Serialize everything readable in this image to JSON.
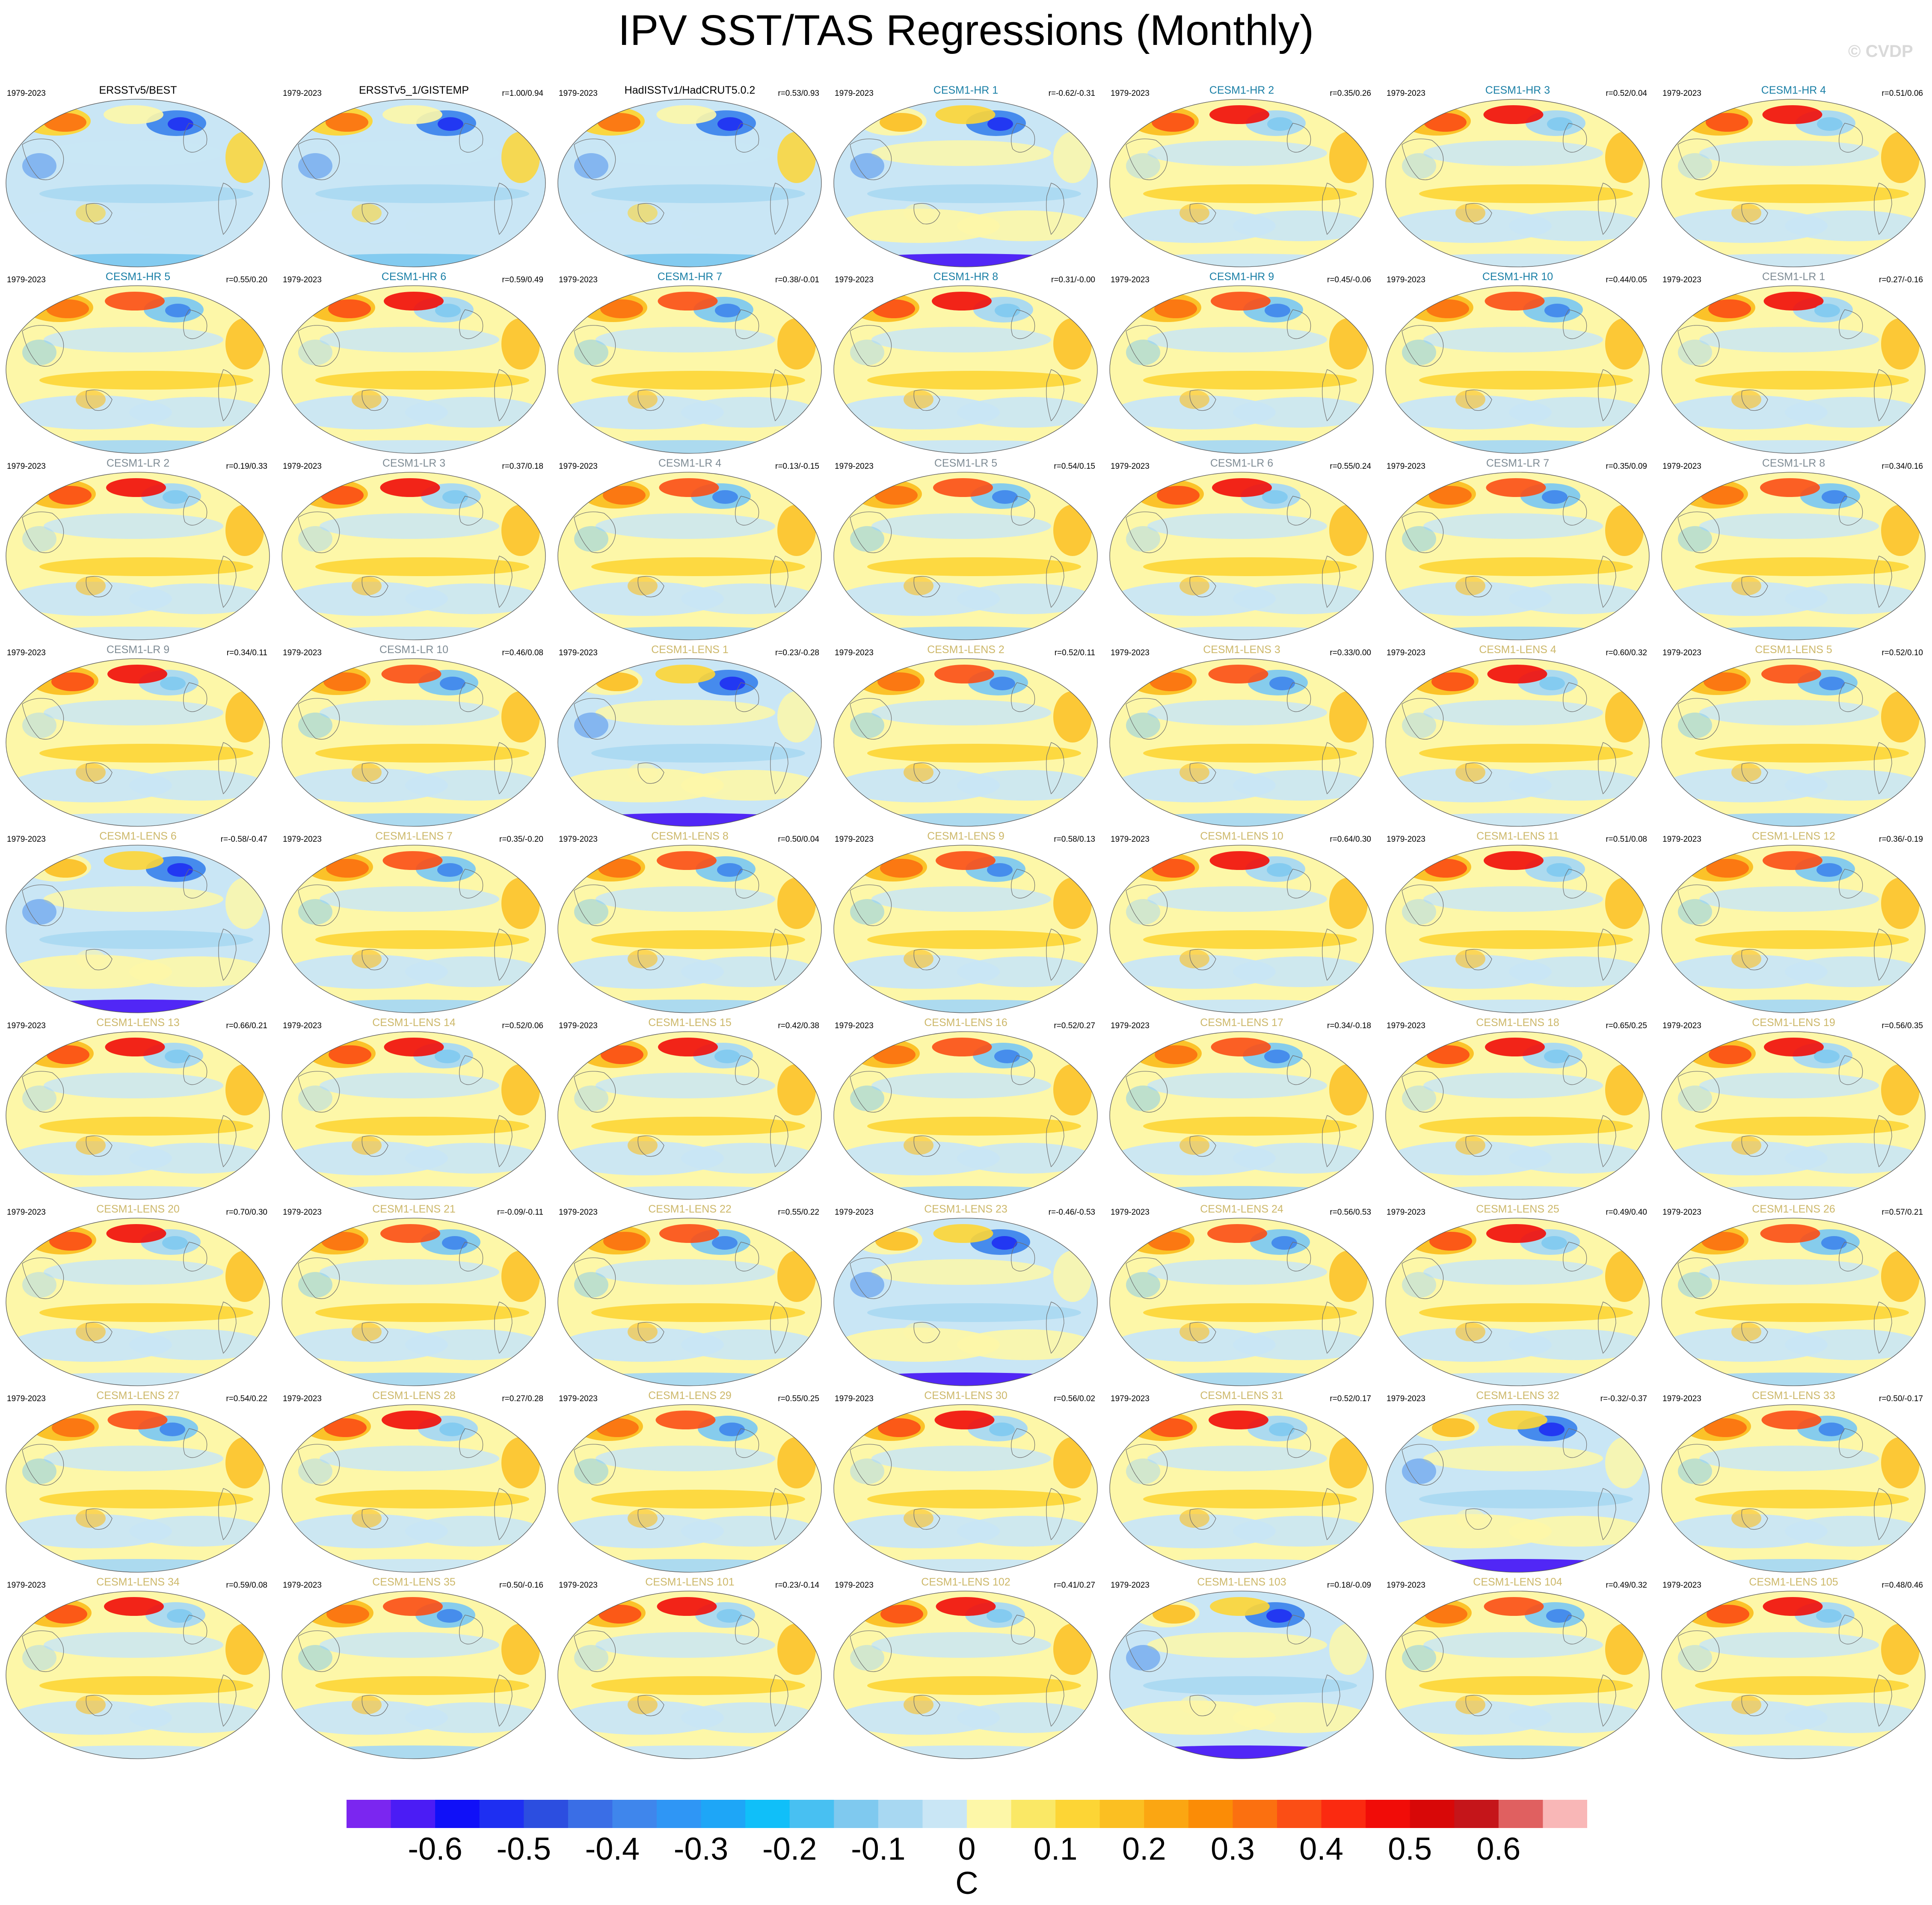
{
  "title": "IPV SST/TAS Regressions (Monthly)",
  "copyright": "© CVDP",
  "name_colors": {
    "obs": "#000000",
    "hr": "#1a7fa6",
    "lr": "#7f8c95",
    "lens": "#cdb86a"
  },
  "panels": [
    {
      "name": "ERSSTv5/BEST",
      "years": "1979-2023",
      "r": "",
      "group": "obs",
      "tone": "obs"
    },
    {
      "name": "ERSSTv5_1/GISTEMP",
      "years": "1979-2023",
      "r": "r=1.00/0.94",
      "group": "obs",
      "tone": "obs"
    },
    {
      "name": "HadISSTv1/HadCRUT5.0.2",
      "years": "1979-2023",
      "r": "r=0.53/0.93",
      "group": "obs",
      "tone": "obs"
    },
    {
      "name": "CESM1-HR 1",
      "years": "1979-2023",
      "r": "r=-0.62/-0.31",
      "group": "hr",
      "tone": "neg"
    },
    {
      "name": "CESM1-HR 2",
      "years": "1979-2023",
      "r": "r=0.35/0.26",
      "group": "hr",
      "tone": "warm"
    },
    {
      "name": "CESM1-HR 3",
      "years": "1979-2023",
      "r": "r=0.52/0.04",
      "group": "hr",
      "tone": "warm"
    },
    {
      "name": "CESM1-HR 4",
      "years": "1979-2023",
      "r": "r=0.51/0.06",
      "group": "hr",
      "tone": "warm"
    },
    {
      "name": "CESM1-HR 5",
      "years": "1979-2023",
      "r": "r=0.55/0.20",
      "group": "hr",
      "tone": "mix"
    },
    {
      "name": "CESM1-HR 6",
      "years": "1979-2023",
      "r": "r=0.59/0.49",
      "group": "hr",
      "tone": "warm"
    },
    {
      "name": "CESM1-HR 7",
      "years": "1979-2023",
      "r": "r=0.38/-0.01",
      "group": "hr",
      "tone": "mix"
    },
    {
      "name": "CESM1-HR 8",
      "years": "1979-2023",
      "r": "r=0.31/-0.00",
      "group": "hr",
      "tone": "warm"
    },
    {
      "name": "CESM1-HR 9",
      "years": "1979-2023",
      "r": "r=0.45/-0.06",
      "group": "hr",
      "tone": "mix"
    },
    {
      "name": "CESM1-HR 10",
      "years": "1979-2023",
      "r": "r=0.44/0.05",
      "group": "hr",
      "tone": "mix"
    },
    {
      "name": "CESM1-LR 1",
      "years": "1979-2023",
      "r": "r=0.27/-0.16",
      "group": "lr",
      "tone": "warm"
    },
    {
      "name": "CESM1-LR 2",
      "years": "1979-2023",
      "r": "r=0.19/0.33",
      "group": "lr",
      "tone": "warm"
    },
    {
      "name": "CESM1-LR 3",
      "years": "1979-2023",
      "r": "r=0.37/0.18",
      "group": "lr",
      "tone": "warm"
    },
    {
      "name": "CESM1-LR 4",
      "years": "1979-2023",
      "r": "r=0.13/-0.15",
      "group": "lr",
      "tone": "mix"
    },
    {
      "name": "CESM1-LR 5",
      "years": "1979-2023",
      "r": "r=0.54/0.15",
      "group": "lr",
      "tone": "mix"
    },
    {
      "name": "CESM1-LR 6",
      "years": "1979-2023",
      "r": "r=0.55/0.24",
      "group": "lr",
      "tone": "warm"
    },
    {
      "name": "CESM1-LR 7",
      "years": "1979-2023",
      "r": "r=0.35/0.09",
      "group": "lr",
      "tone": "mix"
    },
    {
      "name": "CESM1-LR 8",
      "years": "1979-2023",
      "r": "r=0.34/0.16",
      "group": "lr",
      "tone": "mix"
    },
    {
      "name": "CESM1-LR 9",
      "years": "1979-2023",
      "r": "r=0.34/0.11",
      "group": "lr",
      "tone": "warm"
    },
    {
      "name": "CESM1-LR 10",
      "years": "1979-2023",
      "r": "r=0.46/0.08",
      "group": "lr",
      "tone": "mix"
    },
    {
      "name": "CESM1-LENS 1",
      "years": "1979-2023",
      "r": "r=0.23/-0.28",
      "group": "lens",
      "tone": "neg"
    },
    {
      "name": "CESM1-LENS 2",
      "years": "1979-2023",
      "r": "r=0.52/0.11",
      "group": "lens",
      "tone": "mix"
    },
    {
      "name": "CESM1-LENS 3",
      "years": "1979-2023",
      "r": "r=0.33/0.00",
      "group": "lens",
      "tone": "mix"
    },
    {
      "name": "CESM1-LENS 4",
      "years": "1979-2023",
      "r": "r=0.60/0.32",
      "group": "lens",
      "tone": "warm"
    },
    {
      "name": "CESM1-LENS 5",
      "years": "1979-2023",
      "r": "r=0.52/0.10",
      "group": "lens",
      "tone": "mix"
    },
    {
      "name": "CESM1-LENS 6",
      "years": "1979-2023",
      "r": "r=-0.58/-0.47",
      "group": "lens",
      "tone": "neg"
    },
    {
      "name": "CESM1-LENS 7",
      "years": "1979-2023",
      "r": "r=0.35/-0.20",
      "group": "lens",
      "tone": "mix"
    },
    {
      "name": "CESM1-LENS 8",
      "years": "1979-2023",
      "r": "r=0.50/0.04",
      "group": "lens",
      "tone": "mix"
    },
    {
      "name": "CESM1-LENS 9",
      "years": "1979-2023",
      "r": "r=0.58/0.13",
      "group": "lens",
      "tone": "mix"
    },
    {
      "name": "CESM1-LENS 10",
      "years": "1979-2023",
      "r": "r=0.64/0.30",
      "group": "lens",
      "tone": "warm"
    },
    {
      "name": "CESM1-LENS 11",
      "years": "1979-2023",
      "r": "r=0.51/0.08",
      "group": "lens",
      "tone": "warm"
    },
    {
      "name": "CESM1-LENS 12",
      "years": "1979-2023",
      "r": "r=0.36/-0.19",
      "group": "lens",
      "tone": "mix"
    },
    {
      "name": "CESM1-LENS 13",
      "years": "1979-2023",
      "r": "r=0.66/0.21",
      "group": "lens",
      "tone": "warm"
    },
    {
      "name": "CESM1-LENS 14",
      "years": "1979-2023",
      "r": "r=0.52/0.06",
      "group": "lens",
      "tone": "warm"
    },
    {
      "name": "CESM1-LENS 15",
      "years": "1979-2023",
      "r": "r=0.42/0.38",
      "group": "lens",
      "tone": "warm"
    },
    {
      "name": "CESM1-LENS 16",
      "years": "1979-2023",
      "r": "r=0.52/0.27",
      "group": "lens",
      "tone": "mix"
    },
    {
      "name": "CESM1-LENS 17",
      "years": "1979-2023",
      "r": "r=0.34/-0.18",
      "group": "lens",
      "tone": "mix"
    },
    {
      "name": "CESM1-LENS 18",
      "years": "1979-2023",
      "r": "r=0.65/0.25",
      "group": "lens",
      "tone": "warm"
    },
    {
      "name": "CESM1-LENS 19",
      "years": "1979-2023",
      "r": "r=0.56/0.35",
      "group": "lens",
      "tone": "warm"
    },
    {
      "name": "CESM1-LENS 20",
      "years": "1979-2023",
      "r": "r=0.70/0.30",
      "group": "lens",
      "tone": "warm"
    },
    {
      "name": "CESM1-LENS 21",
      "years": "1979-2023",
      "r": "r=-0.09/-0.11",
      "group": "lens",
      "tone": "mix"
    },
    {
      "name": "CESM1-LENS 22",
      "years": "1979-2023",
      "r": "r=0.55/0.22",
      "group": "lens",
      "tone": "mix"
    },
    {
      "name": "CESM1-LENS 23",
      "years": "1979-2023",
      "r": "r=-0.46/-0.53",
      "group": "lens",
      "tone": "neg"
    },
    {
      "name": "CESM1-LENS 24",
      "years": "1979-2023",
      "r": "r=0.56/0.53",
      "group": "lens",
      "tone": "mix"
    },
    {
      "name": "CESM1-LENS 25",
      "years": "1979-2023",
      "r": "r=0.49/0.40",
      "group": "lens",
      "tone": "warm"
    },
    {
      "name": "CESM1-LENS 26",
      "years": "1979-2023",
      "r": "r=0.57/0.21",
      "group": "lens",
      "tone": "mix"
    },
    {
      "name": "CESM1-LENS 27",
      "years": "1979-2023",
      "r": "r=0.54/0.22",
      "group": "lens",
      "tone": "mix"
    },
    {
      "name": "CESM1-LENS 28",
      "years": "1979-2023",
      "r": "r=0.27/0.28",
      "group": "lens",
      "tone": "warm"
    },
    {
      "name": "CESM1-LENS 29",
      "years": "1979-2023",
      "r": "r=0.55/0.25",
      "group": "lens",
      "tone": "mix"
    },
    {
      "name": "CESM1-LENS 30",
      "years": "1979-2023",
      "r": "r=0.56/0.02",
      "group": "lens",
      "tone": "warm"
    },
    {
      "name": "CESM1-LENS 31",
      "years": "1979-2023",
      "r": "r=0.52/0.17",
      "group": "lens",
      "tone": "warm"
    },
    {
      "name": "CESM1-LENS 32",
      "years": "1979-2023",
      "r": "r=-0.32/-0.37",
      "group": "lens",
      "tone": "neg"
    },
    {
      "name": "CESM1-LENS 33",
      "years": "1979-2023",
      "r": "r=0.50/-0.17",
      "group": "lens",
      "tone": "mix"
    },
    {
      "name": "CESM1-LENS 34",
      "years": "1979-2023",
      "r": "r=0.59/0.08",
      "group": "lens",
      "tone": "warm"
    },
    {
      "name": "CESM1-LENS 35",
      "years": "1979-2023",
      "r": "r=0.50/-0.16",
      "group": "lens",
      "tone": "mix"
    },
    {
      "name": "CESM1-LENS 101",
      "years": "1979-2023",
      "r": "r=0.23/-0.14",
      "group": "lens",
      "tone": "warm"
    },
    {
      "name": "CESM1-LENS 102",
      "years": "1979-2023",
      "r": "r=0.41/0.27",
      "group": "lens",
      "tone": "warm"
    },
    {
      "name": "CESM1-LENS 103",
      "years": "1979-2023",
      "r": "r=0.18/-0.09",
      "group": "lens",
      "tone": "neg"
    },
    {
      "name": "CESM1-LENS 104",
      "years": "1979-2023",
      "r": "r=0.49/0.32",
      "group": "lens",
      "tone": "mix"
    },
    {
      "name": "CESM1-LENS 105",
      "years": "1979-2023",
      "r": "r=0.48/0.46",
      "group": "lens",
      "tone": "warm"
    }
  ],
  "colorbar": {
    "colors": [
      "#7b26f0",
      "#4b1cf5",
      "#1010f8",
      "#1e2ff2",
      "#2c4ee0",
      "#3a6ee6",
      "#3f86ec",
      "#2f96f5",
      "#1ea6f7",
      "#10bff9",
      "#48c0f2",
      "#7fc9ef",
      "#a8d8f2",
      "#c9e6f5",
      "#fdf7a8",
      "#fae866",
      "#fdd535",
      "#fbbf22",
      "#fba612",
      "#fb8c06",
      "#fb7010",
      "#fb4e15",
      "#fb2a10",
      "#f10c08",
      "#d80808",
      "#c5151a",
      "#e06060",
      "#f9b7b7"
    ],
    "tick_labels": [
      "-0.6",
      "-0.5",
      "-0.4",
      "-0.3",
      "-0.2",
      "-0.1",
      "0",
      "0.1",
      "0.2",
      "0.3",
      "0.4",
      "0.5",
      "0.6"
    ],
    "units": "C"
  }
}
